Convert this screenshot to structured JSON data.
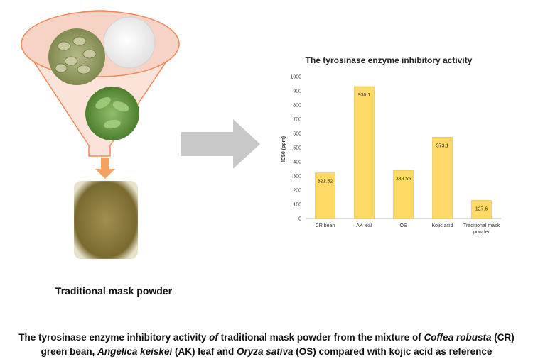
{
  "figure": {
    "mask_powder_label": "Traditional mask powder",
    "caption": {
      "line1_prefix": "The tyrosinase enzyme inhibitory activity ",
      "line1_of": "of",
      "line1_mid": " traditional mask powder from the mixture of ",
      "line1_species": "Coffea robusta",
      "line1_suffix": " (CR)",
      "line2_prefix": "green bean, ",
      "line2_species1": "Angelica keiskei",
      "line2_mid": " (AK) leaf and ",
      "line2_species2": "Oryza sativa",
      "line2_suffix": " (OS) compared with kojic acid as reference"
    }
  },
  "colors": {
    "bar": "#FFD966",
    "bar_stroke": "#E2B53A",
    "funnel_fill": "#FBE3DA",
    "funnel_stroke": "#F08A5D",
    "arrow": "#C8C8C8",
    "powder": "#8A7A3A"
  },
  "chart_data": {
    "type": "bar",
    "title": "The tyrosinase enzyme inhibitory activity",
    "ylabel": "IC50 (ppm)",
    "xlabel": "",
    "ylim": [
      0,
      1000
    ],
    "yticks": [
      0,
      100,
      200,
      300,
      400,
      500,
      600,
      700,
      800,
      900,
      1000
    ],
    "categories": [
      "CR bean",
      "AK leaf",
      "OS",
      "Kojic acid",
      "Traditional mask powder"
    ],
    "values": [
      321.52,
      930.1,
      339.55,
      573.1,
      127.6
    ],
    "data_labels": [
      "321.52",
      "930.1",
      "339.55",
      "573.1",
      "127.6"
    ],
    "grid": false,
    "legend": "none"
  }
}
